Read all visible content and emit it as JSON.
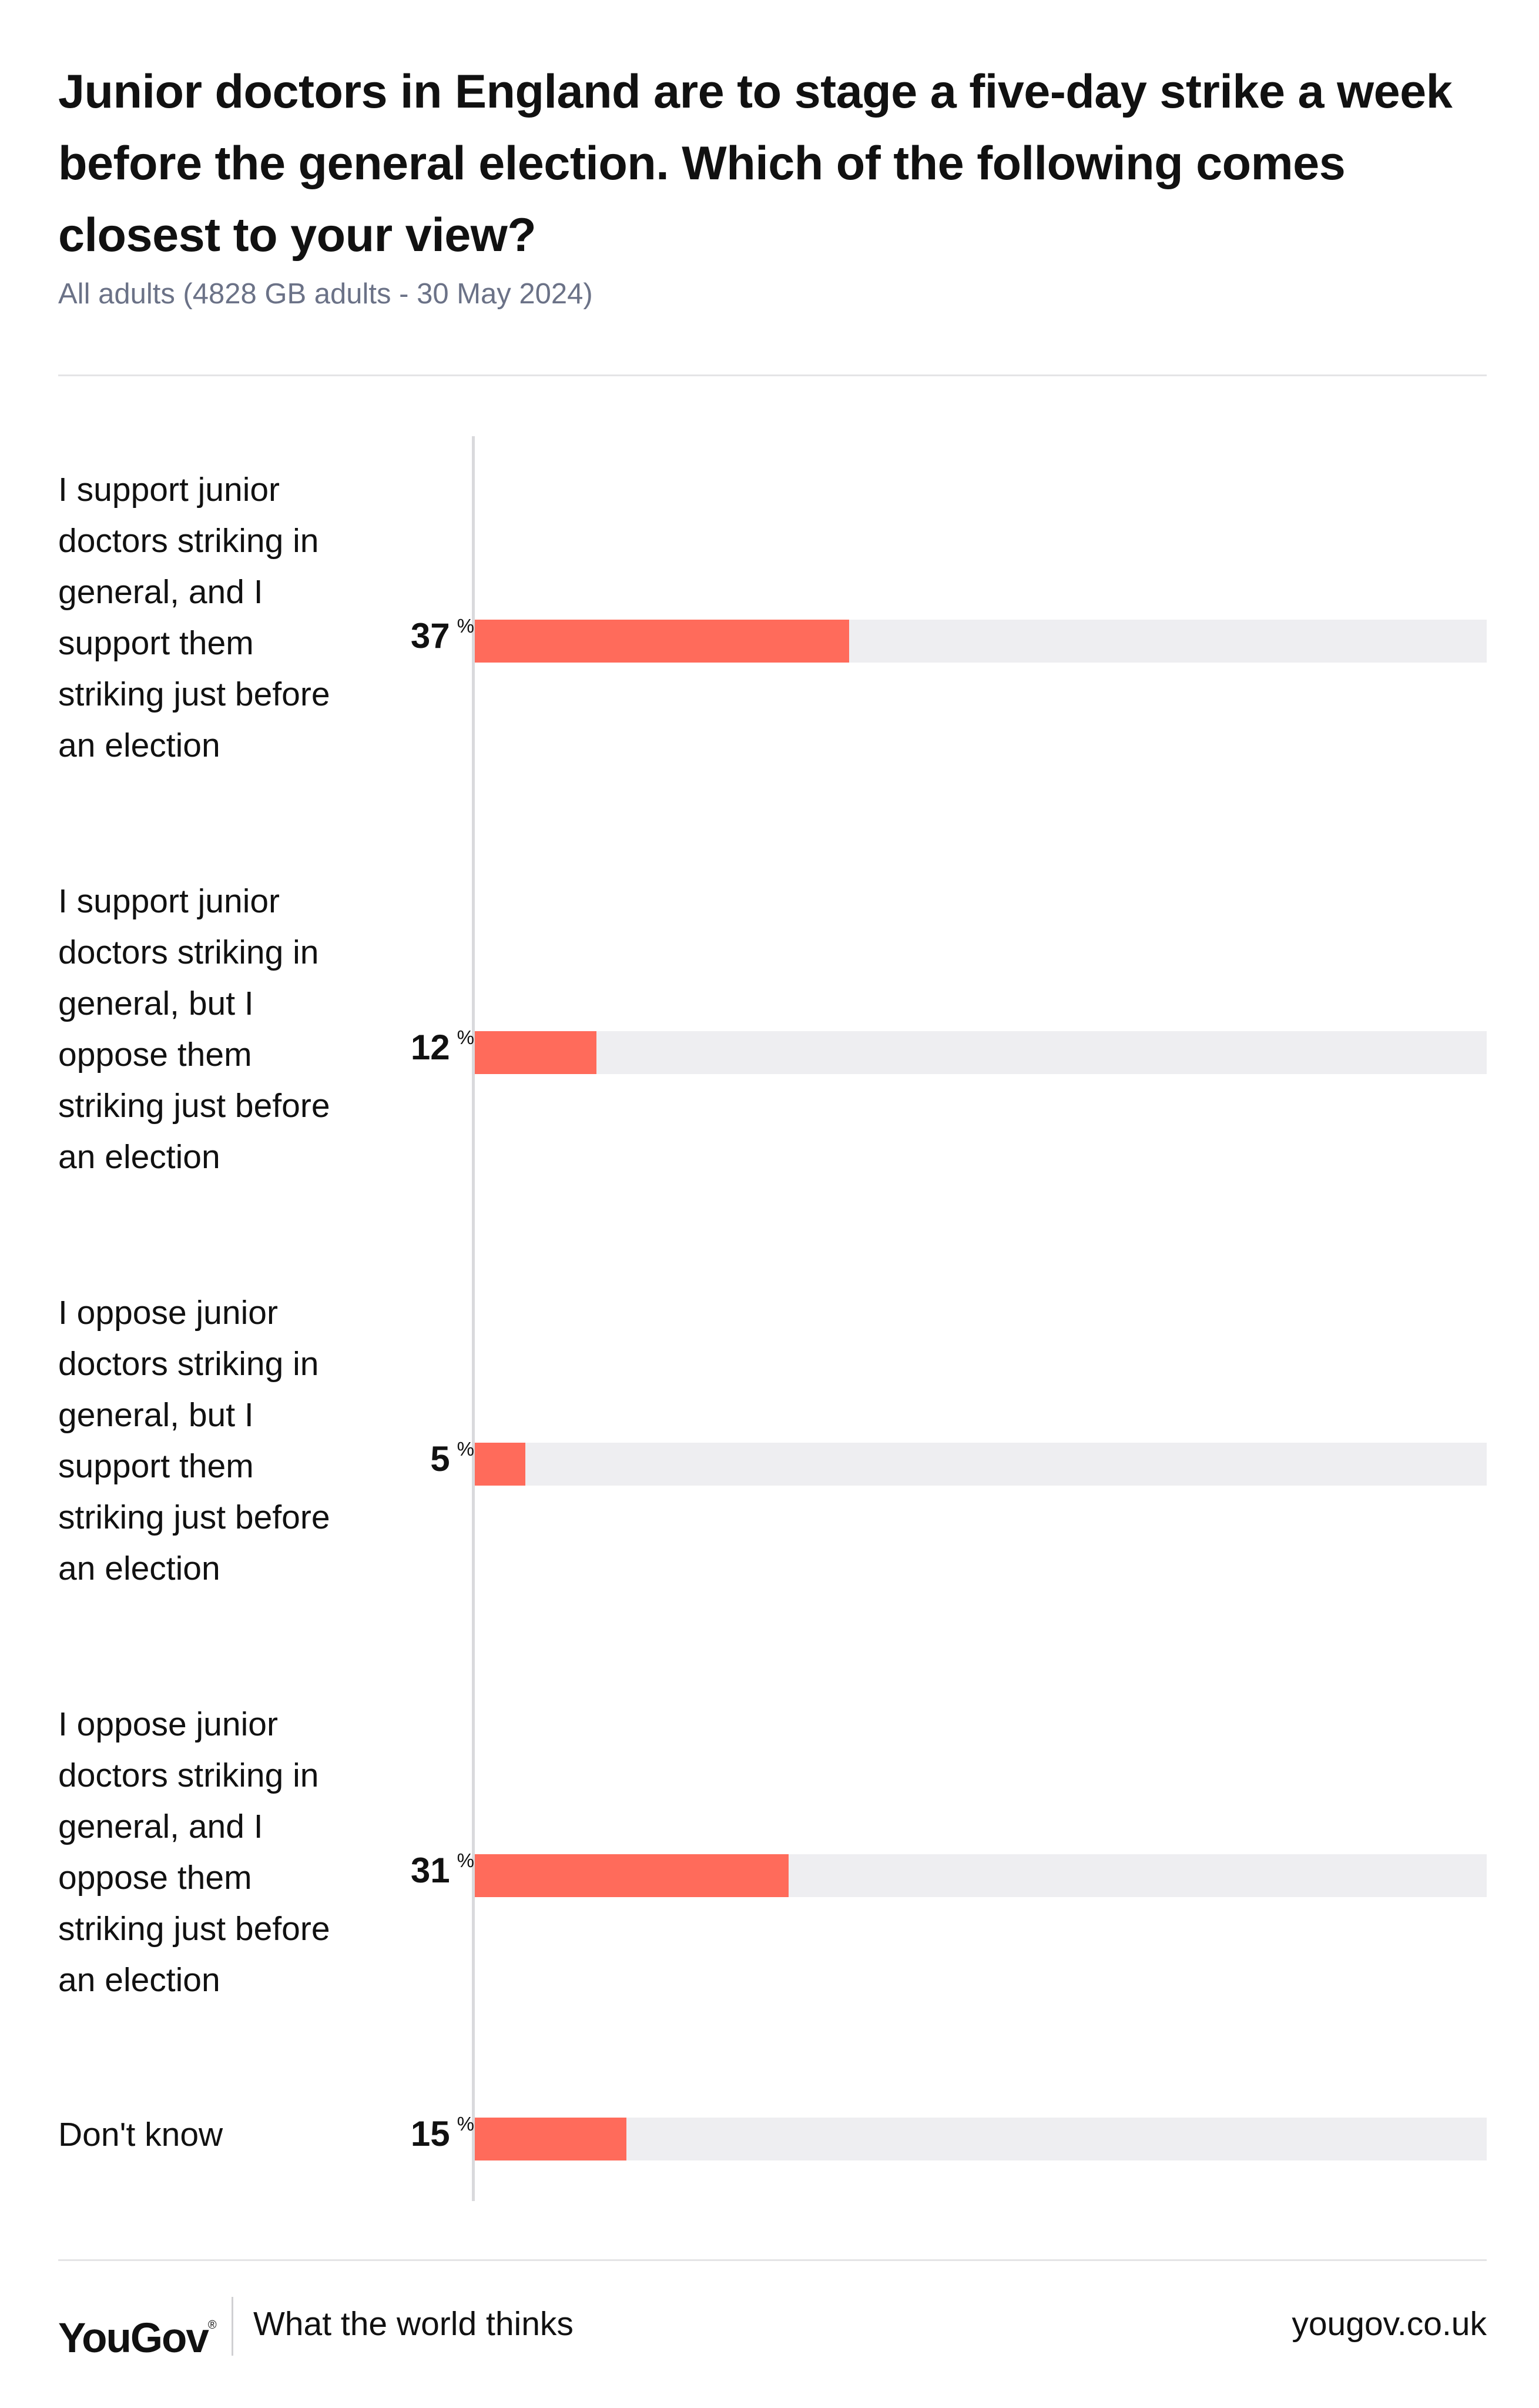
{
  "title": "Junior doctors in England are to stage a five-day strike a week before the general election. Which of the following comes closest to your view?",
  "subtitle": "All adults (4828 GB adults - 30 May 2024)",
  "colors": {
    "bar": "#ff6b5b",
    "track": "#eeeef1",
    "axis": "#d9d9dc",
    "subtitle": "#6b7287"
  },
  "footer": {
    "logo": "YouGov",
    "logo_mark": "®",
    "tagline": "What the world thinks",
    "url": "yougov.co.uk"
  },
  "chart_data": {
    "type": "bar",
    "orientation": "horizontal",
    "title": "Junior doctors in England are to stage a five-day strike a week before the general election. Which of the following comes closest to your view?",
    "subtitle": "All adults (4828 GB adults - 30 May 2024)",
    "unit": "%",
    "xlim": [
      0,
      100
    ],
    "grid": false,
    "legend": "none",
    "categories": [
      "I support junior doctors striking in general, and I support them striking just before an election",
      "I support junior doctors striking in general, but I oppose them striking just before an election",
      "I oppose junior doctors striking in general, but I support them striking just before an election",
      "I oppose junior doctors striking in general, and I oppose them striking just before an election",
      "Don't know"
    ],
    "values": [
      37,
      12,
      5,
      31,
      15
    ]
  }
}
